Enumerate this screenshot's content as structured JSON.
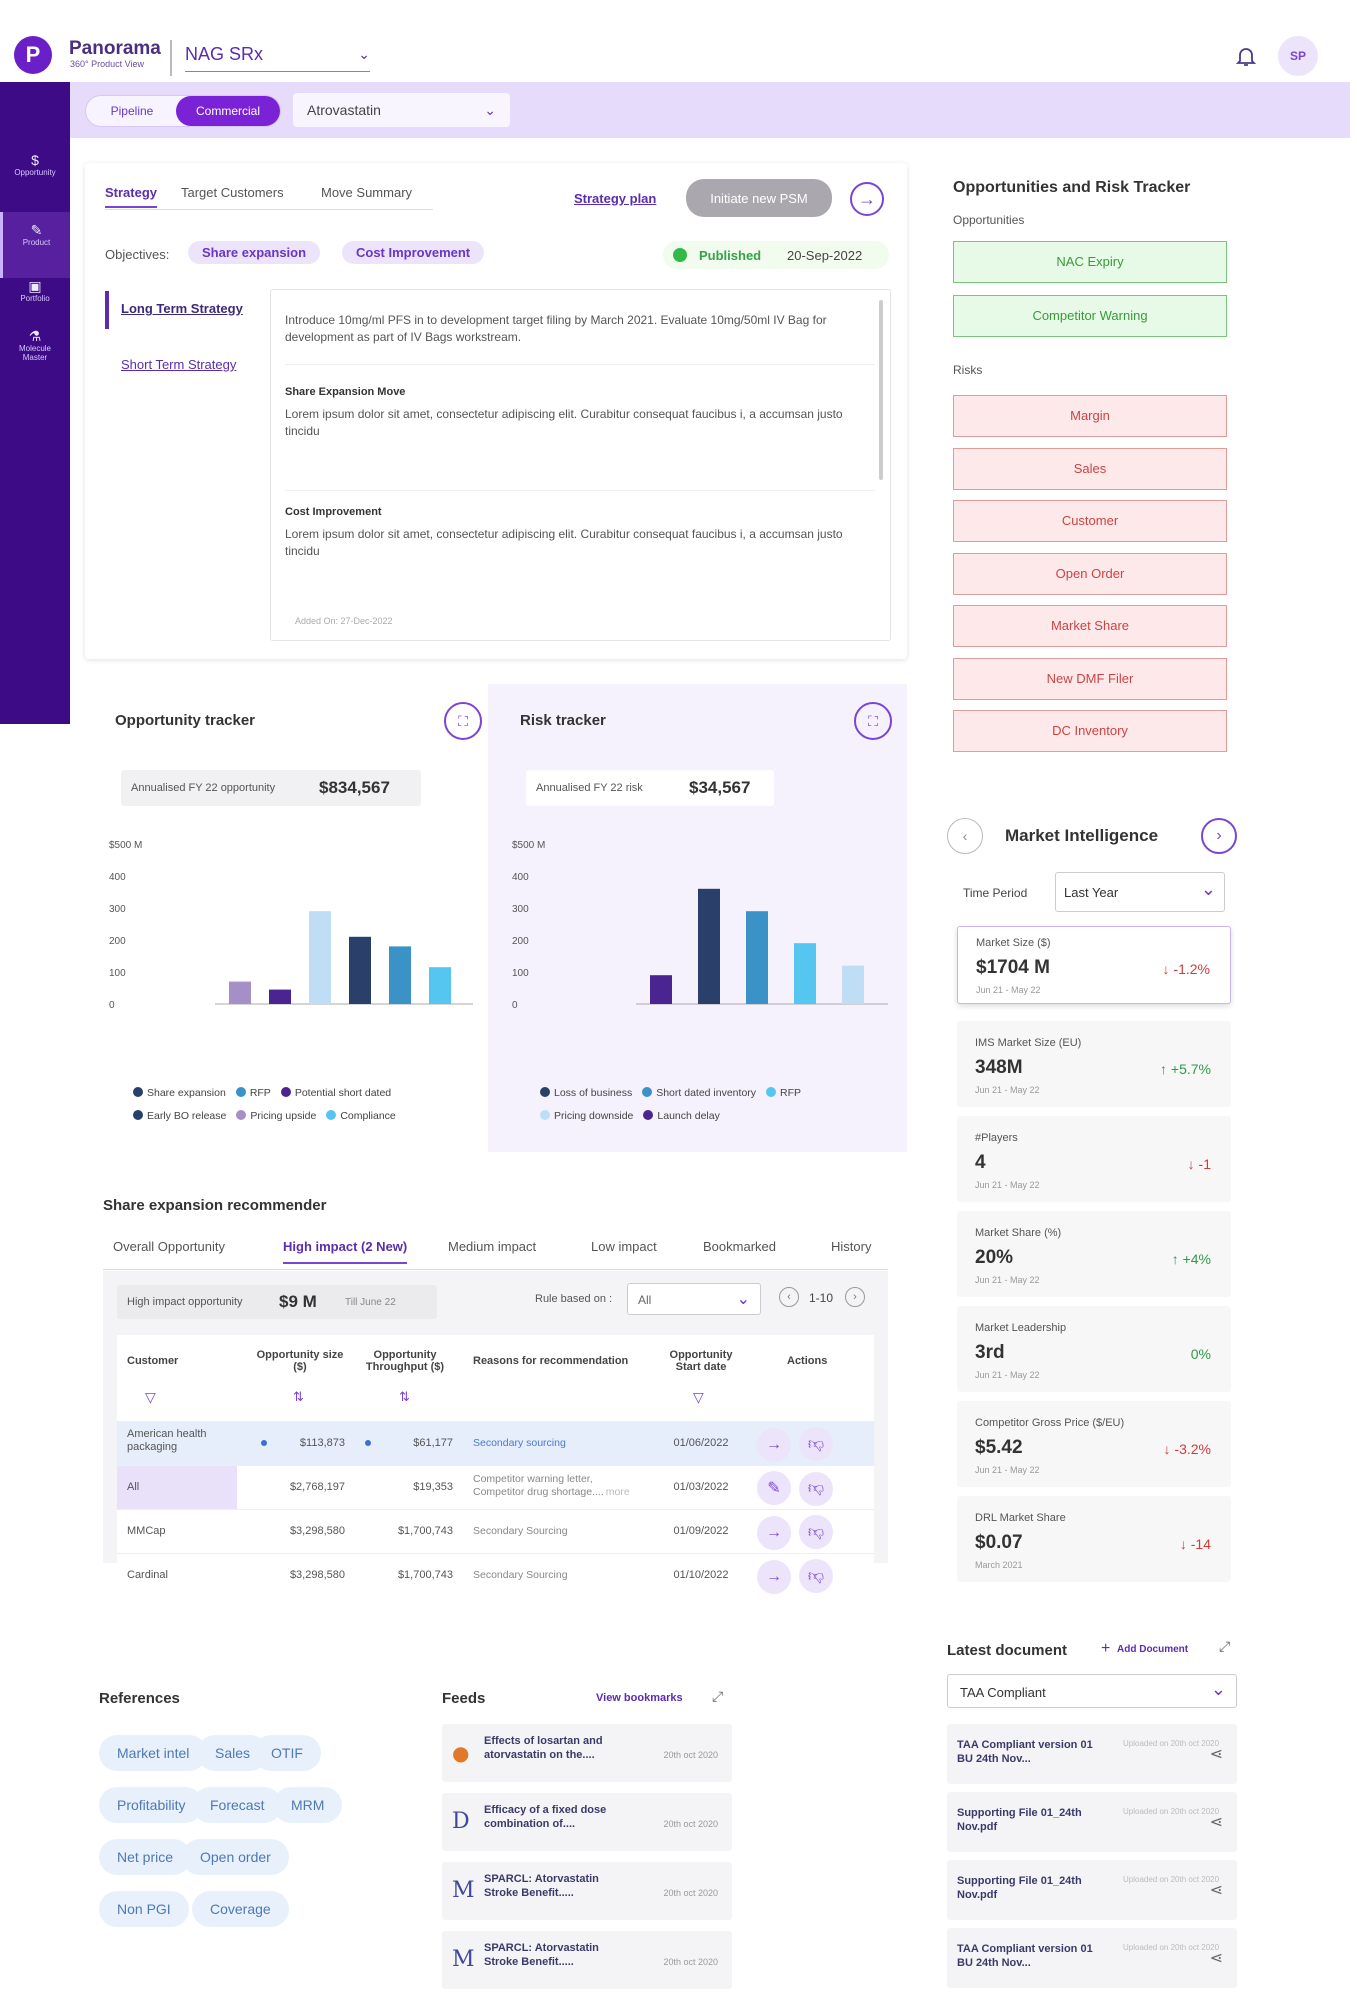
{
  "header": {
    "logo_letter": "P",
    "app_name": "Panorama",
    "app_sub": "360° Product View",
    "product": "NAG SRx",
    "avatar": "SP"
  },
  "subbar": {
    "pipeline": "Pipeline",
    "commercial": "Commercial",
    "drug": "Atrovastatin"
  },
  "sidebar": [
    {
      "icon": "opportunity-icon",
      "label": "Opportunity"
    },
    {
      "icon": "product-icon",
      "label": "Product"
    },
    {
      "icon": "portfolio-icon",
      "label": "Portfolio"
    },
    {
      "icon": "molecule-icon",
      "label": "Molecule Master"
    }
  ],
  "strategy": {
    "tabs": [
      "Strategy",
      "Target Customers",
      "Move Summary"
    ],
    "plan_link": "Strategy plan",
    "initiate": "Initiate new PSM",
    "objectives_label": "Objectives:",
    "objectives": [
      "Share expansion",
      "Cost Improvement"
    ],
    "status": "Published",
    "date": "20-Sep-2022",
    "side_links": [
      "Long Term Strategy",
      "Short Term Strategy"
    ],
    "intro": "Introduce 10mg/ml PFS in to development target filing by March 2021. Evaluate 10mg/50ml IV Bag for development as part of IV Bags workstream.",
    "sections": [
      {
        "title": "Share Expansion Move",
        "text": "Lorem ipsum dolor sit amet, consectetur adipiscing elit. Curabitur consequat faucibus i, a accumsan justo tincidu"
      },
      {
        "title": "Cost Improvement",
        "text": "Lorem ipsum dolor sit amet, consectetur adipiscing elit. Curabitur consequat faucibus i, a accumsan justo tincidu"
      }
    ],
    "added": "Added On: 27-Dec-2022"
  },
  "opp_tracker": {
    "title": "Opportunity tracker",
    "metric_label": "Annualised FY 22 opportunity",
    "metric_value": "$834,567",
    "legend": [
      {
        "name": "Share expansion",
        "color": "#2b3f6b"
      },
      {
        "name": "RFP",
        "color": "#3a92c7"
      },
      {
        "name": "Potential short  dated",
        "color": "#4a2490"
      },
      {
        "name": "Early BO release",
        "color": "#2b3f6b"
      },
      {
        "name": "Pricing upside",
        "color": "#a48fc7"
      },
      {
        "name": "Compliance",
        "color": "#55c6f0"
      }
    ]
  },
  "risk_tracker": {
    "title": "Risk tracker",
    "metric_label": "Annualised FY 22 risk",
    "metric_value": "$34,567",
    "legend": [
      {
        "name": "Loss of business",
        "color": "#2b3f6b"
      },
      {
        "name": "Short dated inventory",
        "color": "#3a92c7"
      },
      {
        "name": "RFP",
        "color": "#55c6f0"
      },
      {
        "name": "Pricing downside",
        "color": "#c0ddf6"
      },
      {
        "name": "Launch delay",
        "color": "#4a2490"
      }
    ]
  },
  "chart_data": [
    {
      "type": "bar",
      "title": "Opportunity tracker",
      "categories": [
        "Pricing upside",
        "Potential short dated",
        "Early BO release",
        "Share expansion",
        "RFP",
        "Compliance"
      ],
      "values": [
        70,
        45,
        290,
        210,
        180,
        115
      ],
      "colors": [
        "#a48fc7",
        "#4a2490",
        "#c0ddf6",
        "#2b3f6b",
        "#3a92c7",
        "#55c6f0"
      ],
      "ytick_labels": [
        "$500 M",
        "400",
        "300",
        "200",
        "100",
        "0"
      ],
      "ylim": [
        0,
        500
      ]
    },
    {
      "type": "bar",
      "title": "Risk tracker",
      "categories": [
        "Launch delay",
        "Loss of business",
        "Short dated inventory",
        "RFP",
        "Pricing downside"
      ],
      "values": [
        90,
        360,
        290,
        190,
        120
      ],
      "colors": [
        "#4a2490",
        "#2b3f6b",
        "#3a92c7",
        "#55c6f0",
        "#c0ddf6"
      ],
      "ytick_labels": [
        "$500 M",
        "400",
        "300",
        "200",
        "100",
        "0"
      ],
      "ylim": [
        0,
        500
      ]
    }
  ],
  "recommender": {
    "title": "Share expansion recommender",
    "tabs": [
      "Overall Opportunity",
      "High impact (2 New)",
      "Medium impact",
      "Low impact",
      "Bookmarked",
      "History"
    ],
    "metric_label": "High impact opportunity",
    "metric_value": "$9 M",
    "metric_sub": "Till June 22",
    "rule_label": "Rule based on :",
    "rule_value": "All",
    "pager": "1-10",
    "columns": [
      "Customer",
      "Opportunity size ($)",
      "Opportunity Throughput ($)",
      "Reasons for recommendation",
      "Opportunity Start date",
      "Actions"
    ],
    "rows": [
      {
        "customer": "American health packaging",
        "size": "$113,873",
        "thru": "$61,177",
        "reason": "Secondary sourcing",
        "date": "01/06/2022",
        "dot": true,
        "edit": false
      },
      {
        "customer": "All",
        "size": "$2,768,197",
        "thru": "$19,353",
        "reason": "Competitor warning letter, Competitor drug shortage....",
        "more": "more",
        "date": "01/03/2022",
        "dot": false,
        "edit": true
      },
      {
        "customer": "MMCap",
        "size": "$3,298,580",
        "thru": "$1,700,743",
        "reason": "Secondary Sourcing",
        "date": "01/09/2022",
        "dot": false,
        "edit": false
      },
      {
        "customer": "Cardinal",
        "size": "$3,298,580",
        "thru": "$1,700,743",
        "reason": "Secondary Sourcing",
        "date": "01/10/2022",
        "dot": false,
        "edit": false
      }
    ]
  },
  "references": {
    "title": "References",
    "chips": [
      "Market intel",
      "Sales",
      "OTIF",
      "Profitability",
      "Forecast",
      "MRM",
      "Net price",
      "Open order",
      "Non PGI",
      "Coverage"
    ]
  },
  "feeds": {
    "title": "Feeds",
    "link": "View bookmarks",
    "items": [
      {
        "icon": "●",
        "title": "Effects of losartan and atorvastatin on the....",
        "date": "20th oct 2020"
      },
      {
        "icon": "D",
        "title": "Efficacy of a fixed dose combination of....",
        "date": "20th oct 2020"
      },
      {
        "icon": "M",
        "title": "SPARCL: Atorvastatin Stroke Benefit.....",
        "date": "20th oct 2020"
      },
      {
        "icon": "M",
        "title": "SPARCL: Atorvastatin Stroke Benefit.....",
        "date": "20th oct 2020"
      }
    ]
  },
  "ort": {
    "title": "Opportunities and Risk Tracker",
    "opp_label": "Opportunities",
    "opportunities": [
      "NAC Expiry",
      "Competitor Warning"
    ],
    "risk_label": "Risks",
    "risks": [
      "Margin",
      "Sales",
      "Customer",
      "Open Order",
      "Market Share",
      "New DMF Filer",
      "DC Inventory"
    ]
  },
  "mi": {
    "title": "Market Intelligence",
    "period_label": "Time Period",
    "period": "Last Year",
    "cards": [
      {
        "title": "Market Size ($)",
        "value": "$1704 M",
        "delta": "↓ -1.2%",
        "dir": "down",
        "period": "Jun 21 - May 22"
      },
      {
        "title": "IMS Market Size (EU)",
        "value": "348M",
        "delta": "↑ +5.7%",
        "dir": "up",
        "period": "Jun 21 - May 22"
      },
      {
        "title": "#Players",
        "value": "4",
        "delta": "↓ -1",
        "dir": "down",
        "period": "Jun 21 - May 22"
      },
      {
        "title": "Market Share (%)",
        "value": "20%",
        "delta": "↑ +4%",
        "dir": "up",
        "period": "Jun 21 - May 22"
      },
      {
        "title": "Market Leadership",
        "value": "3rd",
        "delta": "0%",
        "dir": "flat",
        "period": "Jun 21 - May 22"
      },
      {
        "title": "Competitor Gross Price ($/EU)",
        "value": "$5.42",
        "delta": "↓ -3.2%",
        "dir": "down",
        "period": "Jun 21 - May 22"
      },
      {
        "title": "DRL Market Share",
        "value": "$0.07",
        "delta": "↓ -14",
        "dir": "down",
        "period": "March 2021"
      }
    ]
  },
  "docs": {
    "title": "Latest document",
    "add": "Add Document",
    "filter": "TAA Compliant",
    "items": [
      {
        "title": "TAA Compliant version 01 BU 24th Nov...",
        "uploaded": "Uploaded on 20th oct 2020"
      },
      {
        "title": "Supporting File 01_24th Nov.pdf",
        "uploaded": "Uploaded on 20th oct 2020"
      },
      {
        "title": "Supporting File 01_24th Nov.pdf",
        "uploaded": "Uploaded on 20th oct 2020"
      },
      {
        "title": "TAA Compliant version 01 BU 24th Nov...",
        "uploaded": "Uploaded on 20th oct 2020"
      }
    ]
  }
}
